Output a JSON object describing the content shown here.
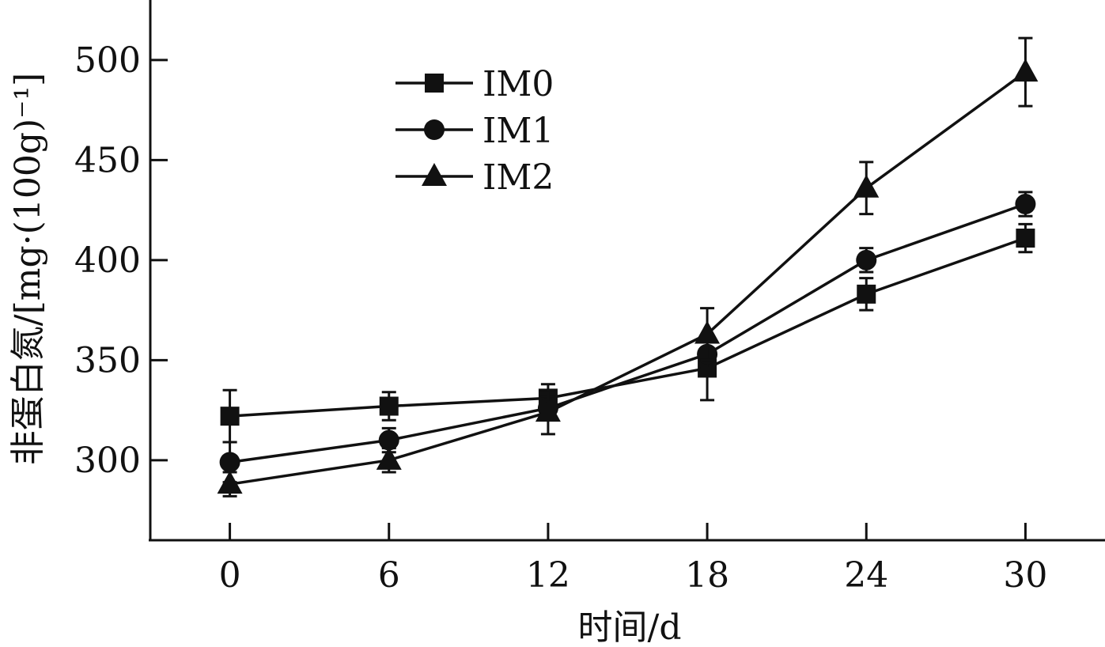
{
  "chart_data": {
    "type": "line",
    "xlabel": "时间/d",
    "ylabel": "非蛋白氮/[mg·(100g)⁻¹]",
    "x": [
      0,
      6,
      12,
      18,
      24,
      30
    ],
    "x_ticks": [
      "0",
      "6",
      "12",
      "18",
      "24",
      "30"
    ],
    "xlim": [
      -3,
      33
    ],
    "y_ticks": [
      "300",
      "350",
      "400",
      "450",
      "500"
    ],
    "ylim": [
      260,
      530
    ],
    "grid": false,
    "legend_position": "top-left",
    "series": [
      {
        "name": "IM0",
        "marker": "square",
        "values": [
          322,
          327,
          331,
          346,
          383,
          411
        ],
        "errors": [
          13,
          7,
          7,
          16,
          8,
          7
        ]
      },
      {
        "name": "IM1",
        "marker": "circle",
        "values": [
          299,
          310,
          326,
          353,
          400,
          428
        ],
        "errors": [
          10,
          6,
          6,
          7,
          6,
          6
        ]
      },
      {
        "name": "IM2",
        "marker": "triangle",
        "values": [
          288,
          300,
          324,
          363,
          436,
          494
        ],
        "errors": [
          6,
          6,
          11,
          13,
          13,
          17
        ]
      }
    ]
  }
}
